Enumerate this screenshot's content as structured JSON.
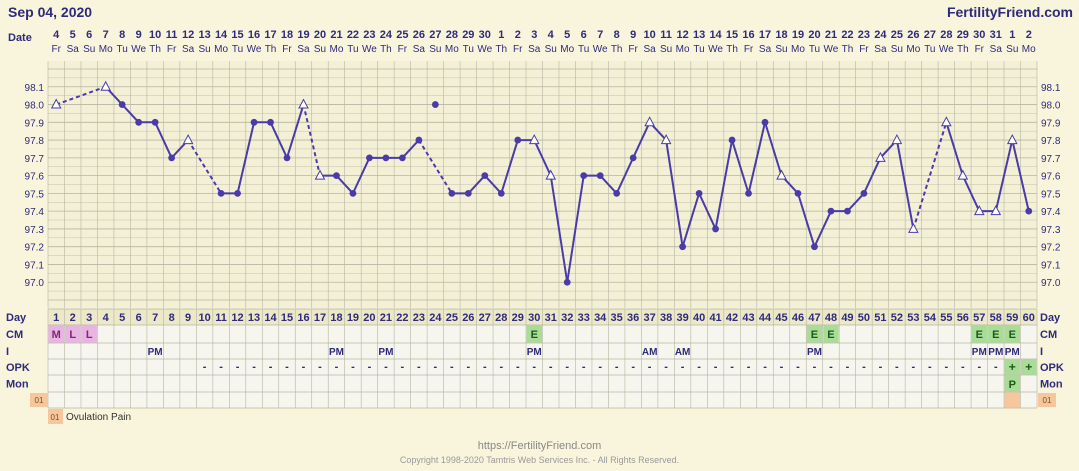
{
  "header": {
    "date": "Sep 04, 2020",
    "brand": "FertilityFriend.com"
  },
  "footer": {
    "url": "https://FertilityFriend.com",
    "copyright": "Copyright 1998-2020 Tamtris Web Services Inc. - All Rights Reserved."
  },
  "row_labels": {
    "date": "Date",
    "day": "Day",
    "cm": "CM",
    "i": "I",
    "opk": "OPK",
    "mon": "Mon"
  },
  "legend": {
    "code": "01",
    "text": "Ovulation Pain"
  },
  "colors": {
    "line": "#4a3ba8",
    "text": "#2e2a7c",
    "grid": "#b5b5a2",
    "chart_bg": "#f3f0d6",
    "cm_menses": "#e9b3e4",
    "cm_egg": "#a9dc97",
    "mon_box": "#a9dc97",
    "code_box": "#f6c69d"
  },
  "chart_data": {
    "type": "line",
    "title": "",
    "ylim": [
      96.9,
      98.2
    ],
    "yticks": [
      "98.1",
      "98.0",
      "97.9",
      "97.8",
      "97.7",
      "97.6",
      "97.5",
      "97.4",
      "97.3",
      "97.2",
      "97.1",
      "97.0"
    ],
    "days": [
      1,
      2,
      3,
      4,
      5,
      6,
      7,
      8,
      9,
      10,
      11,
      12,
      13,
      14,
      15,
      16,
      17,
      18,
      19,
      20,
      21,
      22,
      23,
      24,
      25,
      26,
      27,
      28,
      29,
      30,
      31,
      32,
      33,
      34,
      35,
      36,
      37,
      38,
      39,
      40,
      41,
      42,
      43,
      44,
      45,
      46,
      47,
      48,
      49,
      50,
      51,
      52,
      53,
      54,
      55,
      56,
      57,
      58,
      59,
      60
    ],
    "dates": [
      "4",
      "5",
      "6",
      "7",
      "8",
      "9",
      "10",
      "11",
      "12",
      "13",
      "14",
      "15",
      "16",
      "17",
      "18",
      "19",
      "20",
      "21",
      "22",
      "23",
      "24",
      "25",
      "26",
      "27",
      "28",
      "29",
      "30",
      "1",
      "2",
      "3",
      "4",
      "5",
      "6",
      "7",
      "8",
      "9",
      "10",
      "11",
      "12",
      "13",
      "14",
      "15",
      "16",
      "17",
      "18",
      "19",
      "20",
      "21",
      "22",
      "23",
      "24",
      "25",
      "26",
      "27",
      "28",
      "29",
      "30",
      "31",
      "1",
      "2"
    ],
    "weekdays": [
      "Fr",
      "Sa",
      "Su",
      "Mo",
      "Tu",
      "We",
      "Th",
      "Fr",
      "Sa",
      "Su",
      "Mo",
      "Tu",
      "We",
      "Th",
      "Fr",
      "Sa",
      "Su",
      "Mo",
      "Tu",
      "We",
      "Th",
      "Fr",
      "Sa",
      "Su",
      "Mo",
      "Tu",
      "We",
      "Th",
      "Fr",
      "Sa",
      "Su",
      "Mo",
      "Tu",
      "We",
      "Th",
      "Fr",
      "Sa",
      "Su",
      "Mo",
      "Tu",
      "We",
      "Th",
      "Fr",
      "Sa",
      "Su",
      "Mo",
      "Tu",
      "We",
      "Th",
      "Fr",
      "Sa",
      "Su",
      "Mo",
      "Tu",
      "We",
      "Th",
      "Fr",
      "Sa",
      "Su",
      "Mo"
    ],
    "temps": [
      98.0,
      null,
      null,
      98.1,
      98.0,
      97.9,
      97.9,
      97.7,
      97.8,
      null,
      97.5,
      97.5,
      97.9,
      97.9,
      97.7,
      98.0,
      97.6,
      97.6,
      97.5,
      97.7,
      97.7,
      97.7,
      97.8,
      98.0,
      97.5,
      97.5,
      97.6,
      97.5,
      97.8,
      97.8,
      97.6,
      97.0,
      97.6,
      97.6,
      97.5,
      97.7,
      97.9,
      97.8,
      97.2,
      97.5,
      97.3,
      97.8,
      97.5,
      97.9,
      97.6,
      97.5,
      97.2,
      97.4,
      97.4,
      97.5,
      97.7,
      97.8,
      97.3,
      null,
      97.9,
      97.6,
      97.4,
      97.4,
      97.8,
      97.4
    ],
    "open_markers": [
      1,
      4,
      9,
      16,
      17,
      30,
      31,
      37,
      38,
      45,
      51,
      52,
      53,
      55,
      56,
      57,
      58,
      59
    ],
    "connected_line_gaps_after": [
      23,
      24
    ],
    "dashed_segments": [
      [
        1,
        4
      ],
      [
        9,
        11
      ],
      [
        16,
        17
      ],
      [
        23,
        25
      ],
      [
        53,
        55
      ]
    ],
    "cm": {
      "1": "M",
      "2": "L",
      "3": "L",
      "30": "E",
      "47": "E",
      "48": "E",
      "57": "E",
      "58": "E",
      "59": "E"
    },
    "intercourse": {
      "7": "PM",
      "18": "PM",
      "21": "PM",
      "30": "PM",
      "37": "AM",
      "39": "AM",
      "47": "PM",
      "57": "PM",
      "58": "PM",
      "59": "PM"
    },
    "opk_dash_from": 10,
    "opk_dash_to": 58,
    "opk_plus": [
      59,
      60
    ],
    "mon": {
      "59": "P"
    },
    "codes": {
      "59": "01"
    }
  }
}
